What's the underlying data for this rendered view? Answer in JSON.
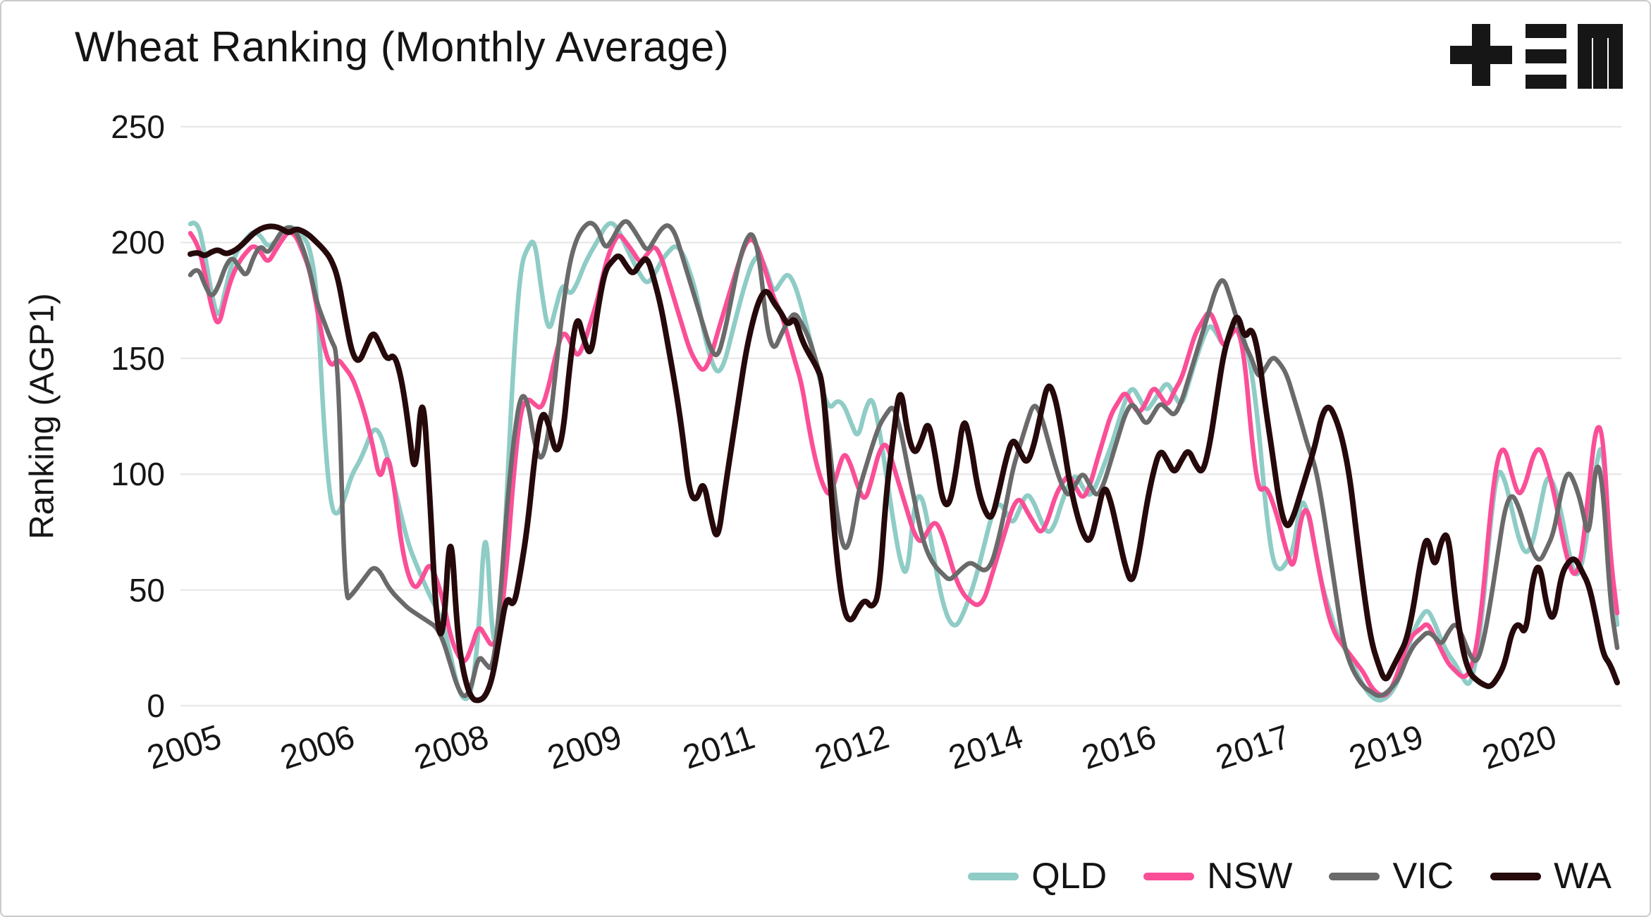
{
  "logo": {
    "name": "TEM",
    "icon": "tem-logo",
    "color": "#161616"
  },
  "chart_data": {
    "type": "line",
    "title": "Wheat Ranking (Monthly Average)",
    "xlabel": "",
    "ylabel": "Ranking (AGP1)",
    "ylim": [
      0,
      250
    ],
    "grid": true,
    "legend_position": "bottom-right",
    "x_start": "2005-01",
    "x_interval": "monthly",
    "x_tick_interval_months": 19,
    "yticks": [
      250,
      200,
      150,
      100,
      50,
      0
    ],
    "ytick_labels": [
      "250",
      "200",
      "150",
      "100",
      "50",
      "0"
    ],
    "xtick_labels": [
      "2005",
      "2006",
      "2008",
      "2009",
      "2011",
      "2012",
      "2014",
      "2016",
      "2017",
      "2019",
      "2020"
    ],
    "xtick_month_indexes": [
      0,
      19,
      38,
      57,
      76,
      95,
      114,
      133,
      152,
      171,
      190
    ],
    "series": [
      {
        "name": "QLD",
        "color": "#8fccc6",
        "values": [
          208,
          210,
          196,
          178,
          166,
          180,
          192,
          198,
          202,
          205,
          203,
          198,
          200,
          204,
          207,
          206,
          203,
          198,
          180,
          120,
          85,
          82,
          90,
          100,
          105,
          112,
          120,
          118,
          108,
          95,
          82,
          70,
          62,
          55,
          48,
          42,
          35,
          22,
          8,
          2,
          5,
          30,
          85,
          25,
          30,
          90,
          150,
          190,
          198,
          202,
          178,
          160,
          172,
          183,
          177,
          182,
          190,
          196,
          201,
          207,
          209,
          205,
          198,
          192,
          186,
          182,
          186,
          192,
          196,
          199,
          196,
          188,
          178,
          162,
          150,
          143,
          148,
          160,
          172,
          183,
          192,
          195,
          188,
          178,
          183,
          187,
          182,
          172,
          160,
          148,
          135,
          128,
          132,
          130,
          122,
          115,
          128,
          134,
          120,
          100,
          80,
          62,
          55,
          88,
          92,
          78,
          60,
          45,
          36,
          34,
          40,
          48,
          58,
          70,
          82,
          88,
          84,
          78,
          85,
          92,
          88,
          80,
          74,
          78,
          88,
          96,
          100,
          94,
          90,
          96,
          104,
          112,
          122,
          132,
          138,
          133,
          127,
          131,
          136,
          140,
          134,
          129,
          139,
          149,
          158,
          165,
          161,
          155,
          160,
          164,
          158,
          145,
          120,
          85,
          62,
          58,
          62,
          68,
          90,
          84,
          68,
          52,
          42,
          32,
          26,
          20,
          14,
          8,
          4,
          2,
          3,
          6,
          12,
          22,
          32,
          38,
          42,
          36,
          28,
          22,
          18,
          12,
          8,
          20,
          45,
          80,
          103,
          98,
          85,
          72,
          65,
          70,
          85,
          100,
          96,
          84,
          68,
          55,
          60,
          80,
          105,
          115,
          60,
          35
        ]
      },
      {
        "name": "NSW",
        "color": "#fa4f97",
        "values": [
          204,
          200,
          188,
          172,
          163,
          176,
          186,
          192,
          196,
          199,
          196,
          191,
          196,
          201,
          205,
          203,
          196,
          188,
          172,
          155,
          146,
          150,
          146,
          142,
          134,
          124,
          112,
          96,
          110,
          95,
          70,
          56,
          50,
          55,
          62,
          55,
          45,
          30,
          22,
          18,
          25,
          35,
          30,
          25,
          32,
          60,
          100,
          128,
          133,
          130,
          128,
          138,
          152,
          162,
          158,
          150,
          156,
          166,
          176,
          190,
          199,
          204,
          200,
          196,
          191,
          195,
          199,
          194,
          184,
          174,
          164,
          154,
          148,
          144,
          150,
          161,
          171,
          181,
          191,
          200,
          202,
          196,
          186,
          176,
          170,
          160,
          149,
          139,
          120,
          105,
          95,
          90,
          100,
          110,
          104,
          94,
          88,
          98,
          110,
          114,
          104,
          94,
          84,
          74,
          70,
          76,
          80,
          74,
          64,
          54,
          48,
          45,
          43,
          46,
          56,
          66,
          76,
          86,
          90,
          84,
          79,
          74,
          80,
          90,
          96,
          100,
          94,
          89,
          95,
          106,
          116,
          126,
          131,
          136,
          130,
          126,
          131,
          138,
          134,
          129,
          136,
          141,
          151,
          161,
          166,
          171,
          164,
          154,
          160,
          164,
          150,
          115,
          92,
          95,
          88,
          78,
          66,
          58,
          82,
          86,
          68,
          52,
          38,
          30,
          26,
          22,
          18,
          14,
          8,
          5,
          4,
          8,
          16,
          26,
          31,
          33,
          36,
          30,
          24,
          18,
          15,
          12,
          14,
          25,
          50,
          85,
          108,
          112,
          100,
          90,
          96,
          108,
          112,
          104,
          92,
          76,
          62,
          55,
          65,
          95,
          122,
          118,
          65,
          40
        ]
      },
      {
        "name": "VIC",
        "color": "#6a6a6a",
        "values": [
          186,
          190,
          182,
          176,
          181,
          190,
          194,
          189,
          185,
          194,
          199,
          195,
          200,
          205,
          207,
          205,
          198,
          188,
          174,
          166,
          158,
          152,
          45,
          48,
          52,
          56,
          60,
          58,
          52,
          48,
          45,
          42,
          40,
          38,
          36,
          34,
          28,
          18,
          8,
          3,
          8,
          22,
          18,
          15,
          42,
          85,
          115,
          135,
          132,
          112,
          105,
          118,
          145,
          172,
          192,
          202,
          207,
          209,
          206,
          197,
          201,
          207,
          210,
          206,
          201,
          196,
          201,
          206,
          208,
          204,
          194,
          184,
          174,
          164,
          154,
          150,
          161,
          176,
          191,
          201,
          205,
          193,
          163,
          153,
          160,
          166,
          170,
          165,
          159,
          149,
          139,
          110,
          82,
          66,
          72,
          92,
          102,
          112,
          121,
          126,
          130,
          120,
          104,
          89,
          74,
          65,
          60,
          57,
          54,
          57,
          60,
          62,
          60,
          58,
          61,
          72,
          86,
          102,
          112,
          122,
          131,
          126,
          115,
          104,
          95,
          90,
          96,
          101,
          95,
          90,
          96,
          106,
          116,
          126,
          131,
          126,
          121,
          126,
          131,
          128,
          125,
          131,
          141,
          151,
          161,
          171,
          181,
          185,
          176,
          166,
          156,
          150,
          141,
          146,
          151,
          148,
          143,
          133,
          123,
          112,
          104,
          88,
          68,
          48,
          28,
          18,
          12,
          8,
          6,
          4,
          5,
          8,
          12,
          20,
          26,
          29,
          32,
          30,
          26,
          32,
          36,
          30,
          22,
          18,
          28,
          45,
          65,
          85,
          92,
          86,
          76,
          66,
          62,
          68,
          75,
          92,
          102,
          96,
          86,
          70,
          108,
          95,
          45,
          25
        ]
      },
      {
        "name": "WA",
        "color": "#26090b",
        "values": [
          195,
          196,
          194,
          196,
          197,
          195,
          196,
          198,
          201,
          204,
          206,
          207,
          207,
          206,
          204,
          206,
          205,
          203,
          200,
          197,
          193,
          185,
          168,
          152,
          148,
          155,
          162,
          156,
          149,
          152,
          142,
          122,
          96,
          140,
          95,
          35,
          28,
          82,
          30,
          12,
          3,
          2,
          4,
          12,
          30,
          48,
          42,
          58,
          78,
          108,
          128,
          122,
          108,
          116,
          148,
          170,
          158,
          150,
          172,
          188,
          192,
          195,
          190,
          186,
          191,
          194,
          184,
          172,
          155,
          138,
          118,
          92,
          88,
          98,
          82,
          70,
          92,
          112,
          132,
          152,
          166,
          176,
          180,
          174,
          170,
          164,
          168,
          158,
          152,
          147,
          140,
          98,
          62,
          40,
          36,
          42,
          46,
          42,
          48,
          92,
          116,
          140,
          118,
          108,
          114,
          124,
          108,
          88,
          86,
          102,
          126,
          114,
          94,
          84,
          80,
          92,
          106,
          116,
          110,
          104,
          112,
          126,
          140,
          134,
          118,
          98,
          84,
          74,
          70,
          82,
          96,
          88,
          74,
          60,
          52,
          66,
          86,
          101,
          111,
          106,
          100,
          106,
          111,
          104,
          100,
          112,
          132,
          152,
          162,
          170,
          158,
          164,
          152,
          128,
          108,
          86,
          76,
          82,
          92,
          102,
          112,
          126,
          130,
          124,
          114,
          98,
          72,
          48,
          28,
          18,
          10,
          16,
          22,
          28,
          42,
          62,
          75,
          58,
          72,
          75,
          44,
          24,
          14,
          11,
          9,
          8,
          12,
          18,
          32,
          36,
          30,
          56,
          62,
          42,
          36,
          56,
          62,
          64,
          58,
          52,
          38,
          22,
          18,
          10
        ]
      }
    ]
  }
}
